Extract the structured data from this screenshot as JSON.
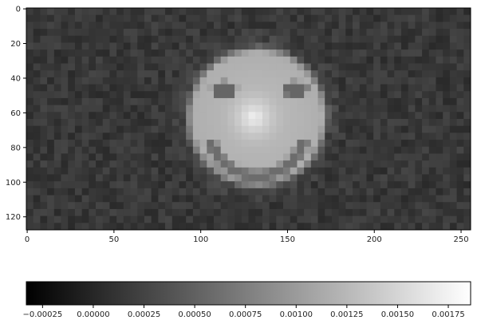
{
  "chart_data": {
    "type": "heatmap",
    "colormap": "gray",
    "image_rows": 128,
    "image_cols": 256,
    "xlim": [
      -0.5,
      255.5
    ],
    "ylim": [
      127.5,
      -0.5
    ],
    "x_ticks": [
      {
        "value": 0,
        "label": "0"
      },
      {
        "value": 50,
        "label": "50"
      },
      {
        "value": 100,
        "label": "100"
      },
      {
        "value": 150,
        "label": "150"
      },
      {
        "value": 200,
        "label": "200"
      },
      {
        "value": 250,
        "label": "250"
      }
    ],
    "y_ticks": [
      {
        "value": 0,
        "label": "0"
      },
      {
        "value": 20,
        "label": "20"
      },
      {
        "value": 40,
        "label": "40"
      },
      {
        "value": 60,
        "label": "60"
      },
      {
        "value": 80,
        "label": "80"
      },
      {
        "value": 100,
        "label": "100"
      },
      {
        "value": 120,
        "label": "120"
      }
    ],
    "colorbar": {
      "orientation": "horizontal",
      "vmin": -0.00033,
      "vmax": 0.00186,
      "ticks": [
        {
          "value": -0.00025,
          "label": "−0.00025"
        },
        {
          "value": 0.0,
          "label": "0.00000"
        },
        {
          "value": 0.00025,
          "label": "0.00025"
        },
        {
          "value": 0.0005,
          "label": "0.00050"
        },
        {
          "value": 0.00075,
          "label": "0.00075"
        },
        {
          "value": 0.001,
          "label": "0.00100"
        },
        {
          "value": 0.00125,
          "label": "0.00125"
        },
        {
          "value": 0.0015,
          "label": "0.00150"
        },
        {
          "value": 0.00175,
          "label": "0.00175"
        }
      ]
    },
    "content": {
      "background_level": 0.00015,
      "background_noise": 0.00012,
      "face": {
        "center": [
          133,
          63
        ],
        "radius": 43,
        "level": 0.0013
      },
      "eyes": [
        {
          "center": [
            114,
            47
          ],
          "radius_x": 8.5,
          "radius_y": 5.5,
          "level": 0.00055
        },
        {
          "center": [
            155,
            47
          ],
          "radius_x": 8.5,
          "radius_y": 5.5,
          "level": 0.00055
        }
      ],
      "smile": {
        "center": [
          133,
          69
        ],
        "radius": 28,
        "thickness": 4.5,
        "level": 0.0006
      },
      "highlight": {
        "center": [
          131,
          63
        ],
        "radius": 20,
        "level": 0.00175
      }
    }
  }
}
